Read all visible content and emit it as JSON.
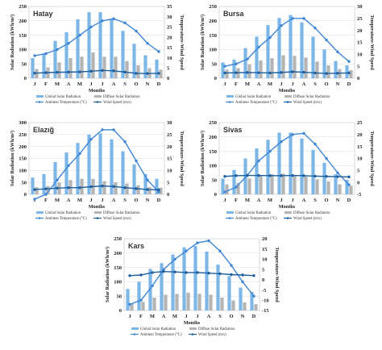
{
  "colors": {
    "global": "#7cb7e8",
    "diffuse": "#b4b4b4",
    "temperature": "#3f86d4",
    "wind": "#1f5f9e"
  },
  "legend": {
    "global": "Global Solar Radiation",
    "diffuse": "Diffuse Solar Radiation",
    "temperature": "Ambient Temperature (°C)",
    "wind": "Wind Speed (m/s)"
  },
  "chart_data": [
    {
      "type": "bar",
      "title": "Hatay",
      "xlabel": "Months",
      "ylabel": "Solar Radiation (kWh/m²)",
      "y2label": "Temperature-Wind Speed",
      "categories": [
        "J",
        "F",
        "M",
        "A",
        "M",
        "J",
        "J",
        "A",
        "S",
        "O",
        "N",
        "D"
      ],
      "ylim": [
        0,
        250
      ],
      "yticks": [
        0,
        50,
        100,
        150,
        200,
        250
      ],
      "y2lim": [
        0,
        35
      ],
      "y2ticks": [
        0,
        5,
        10,
        15,
        20,
        25,
        30,
        35
      ],
      "series": [
        {
          "name": "Global Solar Radiation",
          "axis": "left",
          "kind": "bar",
          "values": [
            70,
            85,
            130,
            160,
            205,
            230,
            230,
            205,
            165,
            120,
            80,
            65
          ]
        },
        {
          "name": "Diffuse Solar Radiation",
          "axis": "left",
          "kind": "bar",
          "values": [
            32,
            38,
            55,
            70,
            75,
            90,
            75,
            75,
            60,
            45,
            35,
            30
          ]
        },
        {
          "name": "Ambient Temperature (°C)",
          "axis": "right",
          "kind": "line",
          "values": [
            11,
            12,
            14,
            17,
            21,
            25,
            28,
            29,
            27,
            23,
            17,
            13
          ]
        },
        {
          "name": "Wind Speed (m/s)",
          "axis": "right",
          "kind": "line",
          "values": [
            2.5,
            2.7,
            2.9,
            3.0,
            3.1,
            3.4,
            3.8,
            3.6,
            3.0,
            2.4,
            2.3,
            2.4
          ]
        }
      ]
    },
    {
      "type": "bar",
      "title": "Bursa",
      "xlabel": "Months",
      "ylabel": "Solar Radiation (kWh/m²)",
      "y2label": "Temperature-Wind Speed",
      "categories": [
        "J",
        "F",
        "M",
        "A",
        "M",
        "J",
        "J",
        "A",
        "S",
        "O",
        "N",
        "D"
      ],
      "ylim": [
        0,
        250
      ],
      "yticks": [
        0,
        50,
        100,
        150,
        200,
        250
      ],
      "y2lim": [
        0,
        30
      ],
      "y2ticks": [
        0,
        5,
        10,
        15,
        20,
        25,
        30
      ],
      "series": [
        {
          "name": "Global Solar Radiation",
          "axis": "left",
          "kind": "bar",
          "values": [
            55,
            65,
            105,
            145,
            185,
            210,
            220,
            195,
            145,
            100,
            60,
            45
          ]
        },
        {
          "name": "Diffuse Solar Radiation",
          "axis": "left",
          "kind": "bar",
          "values": [
            30,
            35,
            48,
            62,
            70,
            80,
            78,
            72,
            58,
            45,
            32,
            28
          ]
        },
        {
          "name": "Ambient Temperature (°C)",
          "axis": "right",
          "kind": "line",
          "values": [
            5,
            6,
            8,
            13,
            17,
            22,
            25,
            25,
            21,
            16,
            11,
            7
          ]
        },
        {
          "name": "Wind Speed (m/s)",
          "axis": "right",
          "kind": "line",
          "values": [
            2.2,
            2.3,
            2.4,
            2.3,
            2.2,
            2.4,
            2.7,
            2.5,
            2.2,
            2.0,
            2.1,
            2.2
          ]
        }
      ]
    },
    {
      "type": "bar",
      "title": "Elazığ",
      "xlabel": "Months",
      "ylabel": "Solar Radiation (kWh/m²)",
      "y2label": "Temperature-Wind Speed",
      "categories": [
        "J",
        "F",
        "M",
        "A",
        "M",
        "J",
        "J",
        "A",
        "S",
        "O",
        "N",
        "D"
      ],
      "ylim": [
        0,
        300
      ],
      "yticks": [
        0,
        50,
        100,
        150,
        200,
        250,
        300
      ],
      "y2lim": [
        0,
        30
      ],
      "y2ticks": [
        0,
        5,
        10,
        15,
        20,
        25,
        30
      ],
      "series": [
        {
          "name": "Global Solar Radiation",
          "axis": "left",
          "kind": "bar",
          "values": [
            70,
            85,
            135,
            175,
            215,
            250,
            255,
            230,
            180,
            125,
            85,
            65
          ]
        },
        {
          "name": "Diffuse Solar Radiation",
          "axis": "left",
          "kind": "bar",
          "values": [
            30,
            35,
            50,
            60,
            65,
            65,
            55,
            50,
            45,
            38,
            30,
            28
          ]
        },
        {
          "name": "Ambient Temperature (°C)",
          "axis": "right",
          "kind": "line",
          "values": [
            -2,
            0,
            6,
            12,
            17,
            23,
            27,
            27,
            22,
            14,
            6,
            1
          ]
        },
        {
          "name": "Wind Speed (m/s)",
          "axis": "right",
          "kind": "line",
          "values": [
            2.0,
            2.3,
            2.6,
            2.8,
            2.8,
            3.2,
            3.5,
            3.3,
            2.8,
            2.4,
            2.0,
            1.9
          ]
        }
      ]
    },
    {
      "type": "bar",
      "title": "Sivas",
      "xlabel": "Months",
      "ylabel": "Solar Radiation (kWh/m²)",
      "y2label": "Temperature-Wind Speed",
      "categories": [
        "J",
        "F",
        "M",
        "A",
        "M",
        "J",
        "J",
        "A",
        "S",
        "O",
        "N",
        "D"
      ],
      "ylim": [
        0,
        250
      ],
      "yticks": [
        0,
        50,
        100,
        150,
        200,
        250
      ],
      "y2lim": [
        -5,
        25
      ],
      "y2ticks": [
        -5,
        0,
        5,
        10,
        15,
        20,
        25
      ],
      "series": [
        {
          "name": "Global Solar Radiation",
          "axis": "left",
          "kind": "bar",
          "values": [
            55,
            85,
            125,
            160,
            190,
            215,
            215,
            195,
            155,
            110,
            70,
            50
          ]
        },
        {
          "name": "Diffuse Solar Radiation",
          "axis": "left",
          "kind": "bar",
          "values": [
            35,
            40,
            55,
            65,
            70,
            72,
            68,
            62,
            52,
            45,
            35,
            30
          ]
        },
        {
          "name": "Ambient Temperature (°C)",
          "axis": "right",
          "kind": "line",
          "values": [
            -4,
            -2,
            3,
            9,
            13,
            17,
            20,
            20.5,
            16,
            10,
            4,
            -1
          ]
        },
        {
          "name": "Wind Speed (m/s)",
          "axis": "right",
          "kind": "line",
          "values": [
            2.5,
            2.8,
            2.9,
            2.9,
            2.8,
            2.8,
            2.9,
            2.8,
            2.6,
            2.5,
            2.4,
            2.3
          ]
        }
      ]
    },
    {
      "type": "bar",
      "title": "Kars",
      "xlabel": "Months",
      "ylabel": "Solar Radiation (kWh/m²)",
      "y2label": "Temperature-Wind Speed",
      "categories": [
        "J",
        "F",
        "M",
        "A",
        "M",
        "J",
        "J",
        "A",
        "S",
        "O",
        "N",
        "D"
      ],
      "ylim": [
        0,
        250
      ],
      "yticks": [
        0,
        50,
        100,
        150,
        200,
        250
      ],
      "y2lim": [
        -15,
        20
      ],
      "y2ticks": [
        -15,
        -10,
        -5,
        0,
        5,
        10,
        15,
        20
      ],
      "series": [
        {
          "name": "Global Solar Radiation",
          "axis": "left",
          "kind": "bar",
          "values": [
            75,
            100,
            145,
            165,
            195,
            220,
            225,
            205,
            160,
            120,
            80,
            65
          ]
        },
        {
          "name": "Diffuse Solar Radiation",
          "axis": "left",
          "kind": "bar",
          "values": [
            25,
            30,
            45,
            55,
            58,
            62,
            58,
            55,
            45,
            35,
            28,
            22
          ]
        },
        {
          "name": "Ambient Temperature (°C)",
          "axis": "right",
          "kind": "line",
          "values": [
            -12,
            -10,
            -3,
            5,
            10,
            14,
            18,
            19,
            14,
            7,
            -1,
            -8
          ]
        },
        {
          "name": "Wind Speed (m/s)",
          "axis": "right",
          "kind": "line",
          "values": [
            2,
            2.3,
            3.5,
            4,
            3.8,
            3.5,
            3.5,
            3.2,
            2.9,
            2.5,
            2.3,
            2
          ]
        }
      ]
    }
  ]
}
